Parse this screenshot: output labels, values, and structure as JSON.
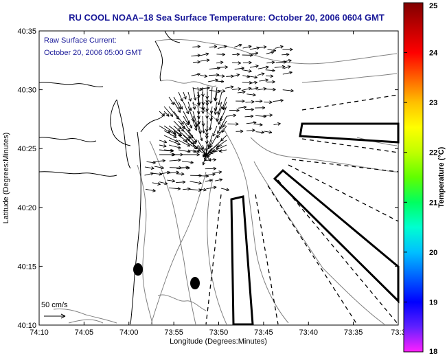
{
  "title": "RU COOL  NOAA–18  Sea Surface Temperature:  October 20, 2006 0604 GMT",
  "current_label": {
    "line1": "Raw Surface Current:",
    "line2": "October 20, 2006 05:00 GMT"
  },
  "x_axis": {
    "label": "Longitude (Degrees:Minutes)",
    "ticks": [
      "74:10",
      "74:05",
      "74:00",
      "73:55",
      "73:50",
      "73:45",
      "73:40",
      "73:35",
      "73:3"
    ]
  },
  "y_axis": {
    "label": "Latitude (Degrees:Minutes)",
    "ticks": [
      "40:35",
      "40:30",
      "40:25",
      "40:20",
      "40:15",
      "40:10"
    ]
  },
  "colorbar": {
    "label": "Temperature (°C)",
    "ticks": [
      "25",
      "24",
      "23",
      "22",
      "21",
      "20",
      "19",
      "18"
    ],
    "min": 18,
    "max": 25,
    "colors": [
      "#ff20ff",
      "#6020ff",
      "#0000ff",
      "#0060ff",
      "#00c0ff",
      "#00ffd0",
      "#00ff60",
      "#60ff00",
      "#c0ff00",
      "#ffff00",
      "#ffc000",
      "#ff6000",
      "#ff0000",
      "#c00000",
      "#800000"
    ]
  },
  "scale_label": "50 cm/s",
  "colors": {
    "title": "#1a1a99",
    "coast": "#000000",
    "bathymetry": "#808080",
    "vectors": "#000000",
    "zones": "#000000"
  }
}
